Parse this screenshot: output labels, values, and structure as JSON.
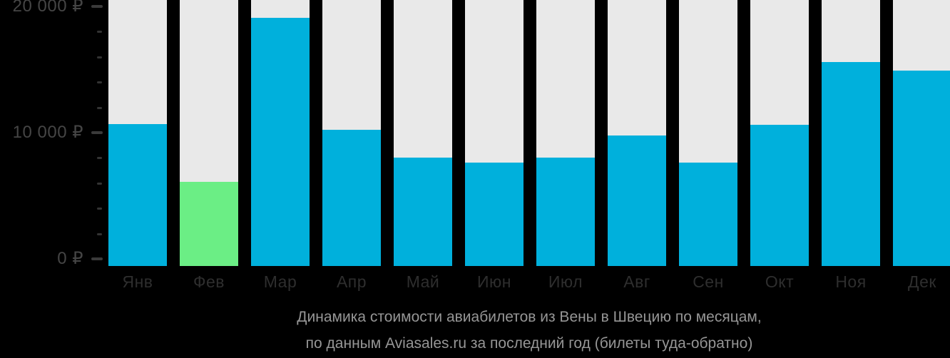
{
  "chart_data": {
    "type": "bar",
    "title": "Динамика стоимости авиабилетов из Вены в Швецию по месяцам,",
    "subtitle": "по данным Aviasales.ru за последний год (билеты туда-обратно)",
    "categories": [
      "Янв",
      "Фев",
      "Мар",
      "Апр",
      "Май",
      "Июн",
      "Июл",
      "Авг",
      "Сен",
      "Окт",
      "Ноя",
      "Дек"
    ],
    "values": [
      10700,
      6100,
      19100,
      10200,
      8000,
      7600,
      8000,
      9800,
      7600,
      10600,
      15600,
      14900
    ],
    "value_unit": "RUB",
    "highlight_index": 1,
    "ylim": [
      0,
      20000
    ],
    "y_axis_ticks": [
      {
        "value": 0,
        "label": "0 ₽"
      },
      {
        "value": 10000,
        "label": "10 000 ₽"
      },
      {
        "value": 20000,
        "label": "20 000 ₽"
      }
    ],
    "minor_tick_step": 2000,
    "grid": false,
    "legend": "none",
    "colors": {
      "bar": "#00b0dc",
      "highlight_bar": "#6bee85",
      "track": "#e9e9e9",
      "background": "#000000",
      "axis_text": "#454545",
      "month_text": "#2e2e2e",
      "tick_mark": "#3a3a3a",
      "caption_text": "#969696"
    }
  }
}
